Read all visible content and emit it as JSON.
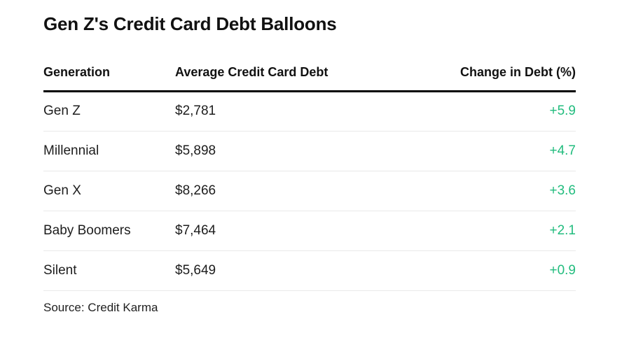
{
  "chart_data": {
    "type": "table",
    "title": "Gen Z's Credit Card Debt Balloons",
    "columns": [
      "Generation",
      "Average Credit Card Debt",
      "Change in Debt (%)"
    ],
    "rows": [
      {
        "generation": "Gen Z",
        "avg_debt": "$2,781",
        "change": "+5.9"
      },
      {
        "generation": "Millennial",
        "avg_debt": "$5,898",
        "change": "+4.7"
      },
      {
        "generation": "Gen X",
        "avg_debt": "$8,266",
        "change": "+3.6"
      },
      {
        "generation": "Baby Boomers",
        "avg_debt": "$7,464",
        "change": "+2.1"
      },
      {
        "generation": "Silent",
        "avg_debt": "$5,649",
        "change": "+0.9"
      }
    ],
    "source": "Source: Credit Karma",
    "positive_color": "#22bc7e",
    "layout": {
      "grid": "horizontal-separators-only",
      "header_rule": "thick-black"
    }
  }
}
